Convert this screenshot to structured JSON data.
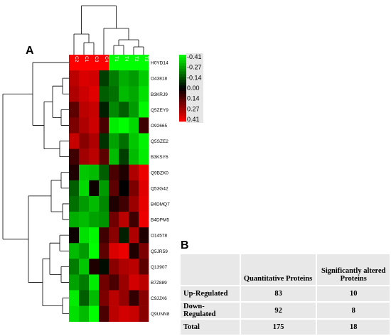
{
  "panel_a_label": "A",
  "panel_b_label": "B",
  "chart_data": {
    "type": "heatmap",
    "columns": [
      "C2",
      "C1",
      "C3",
      "C4",
      "T1",
      "T4",
      "T2",
      "T3"
    ],
    "rows": [
      "H0YD14",
      "O43818",
      "B3KRJ9",
      "Q5ZEY9",
      "O92665",
      "Q5SZE2",
      "B3KSY6",
      "Q9BZK0",
      "Q53G42",
      "B4DMQ7",
      "B4DPM5",
      "O14578",
      "Q5JR59",
      "Q13907",
      "B7Z889",
      "C9JJX6",
      "Q9UNN8"
    ],
    "values": [
      [
        0.41,
        0.41,
        0.41,
        0.41,
        -0.41,
        -0.41,
        -0.41,
        -0.41
      ],
      [
        0.3,
        0.35,
        0.34,
        -0.1,
        -0.2,
        -0.28,
        -0.25,
        -0.33
      ],
      [
        0.28,
        0.33,
        0.36,
        -0.15,
        -0.18,
        -0.3,
        -0.27,
        -0.36
      ],
      [
        0.15,
        0.3,
        0.32,
        -0.05,
        -0.22,
        -0.15,
        -0.25,
        -0.4
      ],
      [
        0.2,
        0.28,
        0.33,
        0.12,
        -0.38,
        -0.41,
        -0.35,
        0.1
      ],
      [
        0.32,
        0.22,
        0.28,
        -0.08,
        -0.26,
        -0.18,
        -0.32,
        -0.39
      ],
      [
        0.1,
        0.26,
        0.3,
        0.15,
        -0.3,
        -0.1,
        -0.3,
        -0.38
      ],
      [
        0.05,
        -0.32,
        -0.3,
        -0.15,
        0.12,
        0.05,
        0.28,
        0.38
      ],
      [
        -0.15,
        -0.35,
        0.02,
        -0.25,
        0.15,
        0.0,
        0.2,
        0.36
      ],
      [
        -0.18,
        -0.25,
        -0.3,
        -0.22,
        0.05,
        0.1,
        0.25,
        0.37
      ],
      [
        -0.28,
        -0.3,
        -0.26,
        -0.24,
        0.18,
        0.3,
        0.1,
        0.38
      ],
      [
        0.02,
        -0.36,
        -0.4,
        0.1,
        0.22,
        -0.05,
        0.28,
        0.05
      ],
      [
        -0.3,
        -0.25,
        -0.41,
        0.15,
        0.35,
        0.38,
        0.05,
        0.2
      ],
      [
        -0.2,
        -0.32,
        0.05,
        -0.02,
        0.22,
        0.28,
        0.3,
        0.15
      ],
      [
        -0.26,
        -0.2,
        -0.38,
        0.18,
        0.12,
        0.25,
        0.34,
        0.3
      ],
      [
        -0.38,
        -0.15,
        -0.3,
        0.2,
        0.3,
        0.24,
        0.08,
        0.22
      ],
      [
        -0.36,
        -0.3,
        -0.41,
        0.12,
        0.3,
        0.34,
        0.32,
        0.22
      ]
    ],
    "color_key": {
      "labels": [
        "-0.41",
        "-0.27",
        "-0.14",
        "0.00",
        "0.14",
        "0.27",
        "0.41"
      ],
      "low_color": "#00ff00",
      "mid_color": "#000000",
      "high_color": "#ff0000"
    },
    "dendrogram": "hierarchical clustering of rows and columns"
  },
  "summary_table": {
    "header": [
      "",
      "Quantitative Proteins",
      "Significantly altered Proteins"
    ],
    "rows": [
      {
        "label": "Up-Regulated",
        "quantitative": "83",
        "altered": "10"
      },
      {
        "label": "Down-Regulated",
        "quantitative": "92",
        "altered": "8"
      },
      {
        "label": "Total",
        "quantitative": "175",
        "altered": "18"
      }
    ]
  }
}
